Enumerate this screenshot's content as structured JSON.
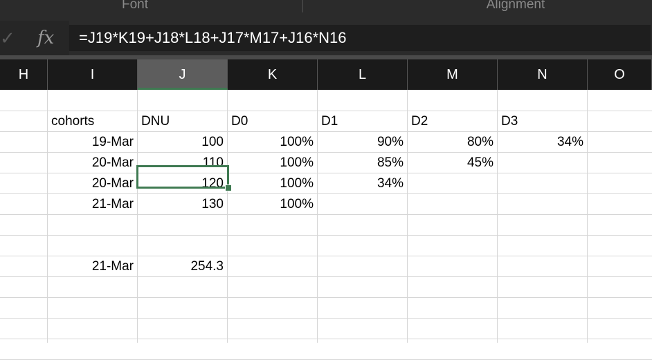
{
  "ribbon": {
    "groups": [
      "Font",
      "Alignment"
    ]
  },
  "formula_bar": {
    "confirm_icon": "checkmark-icon",
    "fx_label": "fx",
    "formula": "=J19*K19+J18*L18+J17*M17+J16*N16"
  },
  "columns": [
    "H",
    "I",
    "J",
    "K",
    "L",
    "M",
    "N",
    "O"
  ],
  "selected_column": "J",
  "rows": [
    [
      "",
      "",
      "",
      "",
      "",
      "",
      "",
      ""
    ],
    [
      "",
      "cohorts",
      "DNU",
      "D0",
      "D1",
      "D2",
      "D3",
      ""
    ],
    [
      "",
      "19-Mar",
      "100",
      "100%",
      "90%",
      "80%",
      "34%",
      ""
    ],
    [
      "",
      "20-Mar",
      "110",
      "100%",
      "85%",
      "45%",
      "",
      ""
    ],
    [
      "",
      "20-Mar",
      "120",
      "100%",
      "34%",
      "",
      "",
      ""
    ],
    [
      "",
      "21-Mar",
      "130",
      "100%",
      "",
      "",
      "",
      ""
    ],
    [
      "",
      "",
      "",
      "",
      "",
      "",
      "",
      ""
    ],
    [
      "",
      "",
      "",
      "",
      "",
      "",
      "",
      ""
    ],
    [
      "",
      "21-Mar",
      "254.3",
      "",
      "",
      "",
      "",
      ""
    ],
    [
      "",
      "",
      "",
      "",
      "",
      "",
      "",
      ""
    ],
    [
      "",
      "",
      "",
      "",
      "",
      "",
      "",
      ""
    ],
    [
      "",
      "",
      "",
      "",
      "",
      "",
      "",
      ""
    ],
    [
      "",
      "",
      "",
      "",
      "",
      "",
      "",
      ""
    ]
  ],
  "active_cell": {
    "column": "J",
    "value": "254.3"
  },
  "colors": {
    "selection": "#3f7a52",
    "header_bg": "#1a1a1a",
    "ribbon_bg": "#2b2b2b"
  }
}
